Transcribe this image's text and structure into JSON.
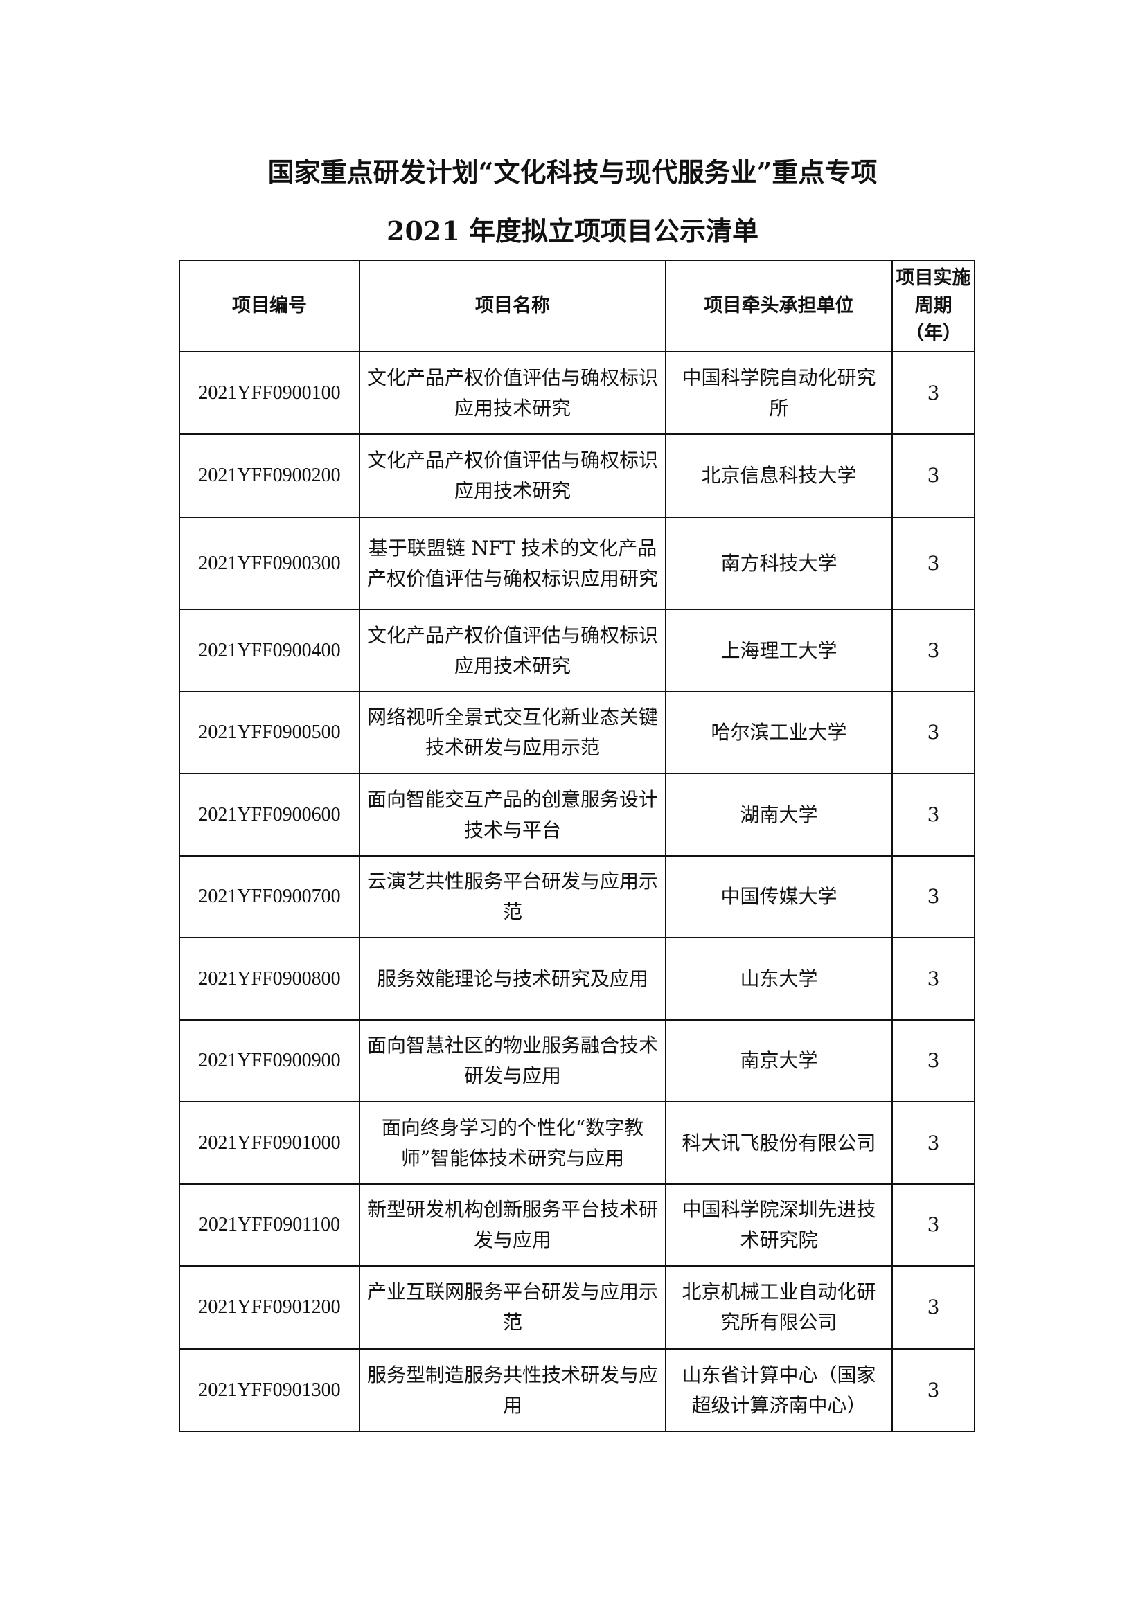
{
  "title_line1": "国家重点研发计划“文化科技与现代服务业”重点专项",
  "title_line2": "2021 年度拟立项项目公示清单",
  "table": {
    "headers": [
      "项目编号",
      "项目名称",
      "项目牵头承担单位",
      "项目实施周期（年）"
    ],
    "rows": [
      {
        "code": "2021YFF0900100",
        "name": "文化产品产权价值评估与确权标识应用技术研究",
        "unit": "中国科学院自动化研究所",
        "period": "3"
      },
      {
        "code": "2021YFF0900200",
        "name": "文化产品产权价值评估与确权标识应用技术研究",
        "unit": "北京信息科技大学",
        "period": "3"
      },
      {
        "code": "2021YFF0900300",
        "name": "基于联盟链 NFT 技术的文化产品产权价值评估与确权标识应用研究",
        "unit": "南方科技大学",
        "period": "3"
      },
      {
        "code": "2021YFF0900400",
        "name": "文化产品产权价值评估与确权标识应用技术研究",
        "unit": "上海理工大学",
        "period": "3"
      },
      {
        "code": "2021YFF0900500",
        "name": "网络视听全景式交互化新业态关键技术研发与应用示范",
        "unit": "哈尔滨工业大学",
        "period": "3"
      },
      {
        "code": "2021YFF0900600",
        "name": "面向智能交互产品的创意服务设计技术与平台",
        "unit": "湖南大学",
        "period": "3"
      },
      {
        "code": "2021YFF0900700",
        "name": "云演艺共性服务平台研发与应用示范",
        "unit": "中国传媒大学",
        "period": "3"
      },
      {
        "code": "2021YFF0900800",
        "name": "服务效能理论与技术研究及应用",
        "unit": "山东大学",
        "period": "3"
      },
      {
        "code": "2021YFF0900900",
        "name": "面向智慧社区的物业服务融合技术研发与应用",
        "unit": "南京大学",
        "period": "3"
      },
      {
        "code": "2021YFF0901000",
        "name": "面向终身学习的个性化“数字教师”智能体技术研究与应用",
        "unit": "科大讯飞股份有限公司",
        "period": "3"
      },
      {
        "code": "2021YFF0901100",
        "name": "新型研发机构创新服务平台技术研发与应用",
        "unit": "中国科学院深圳先进技术研究院",
        "period": "3"
      },
      {
        "code": "2021YFF0901200",
        "name": "产业互联网服务平台研发与应用示范",
        "unit": "北京机械工业自动化研究所有限公司",
        "period": "3"
      },
      {
        "code": "2021YFF0901300",
        "name": "服务型制造服务共性技术研发与应用",
        "unit": "山东省计算中心（国家超级计算济南中心）",
        "period": "3"
      }
    ]
  }
}
